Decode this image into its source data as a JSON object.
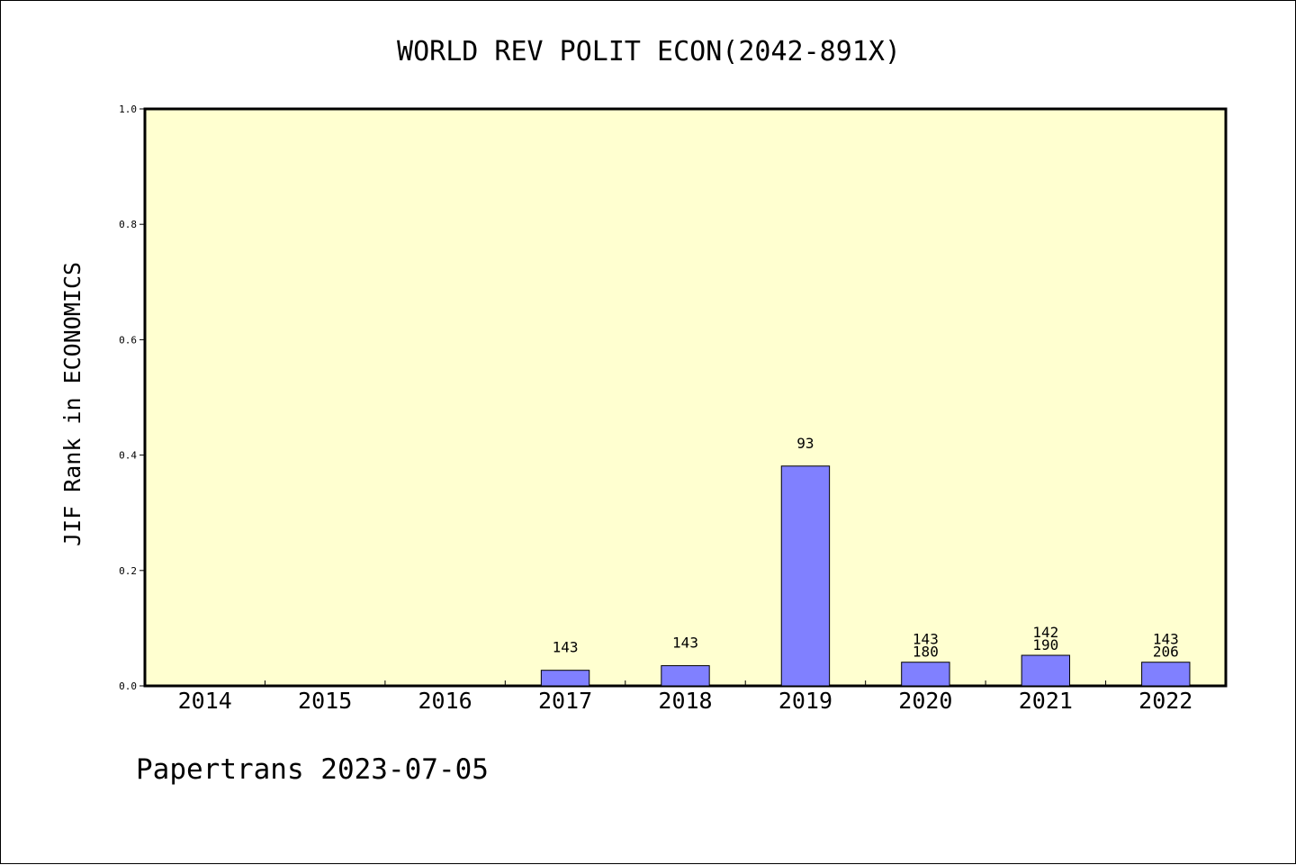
{
  "chart_data": {
    "type": "bar",
    "title": "WORLD REV POLIT ECON(2042-891X)",
    "xlabel": "",
    "ylabel": "JIF Rank in ECONOMICS",
    "ylim": [
      0,
      1.0
    ],
    "yticks": [
      "0.0",
      "0.2",
      "0.4",
      "0.6",
      "0.8",
      "1.0"
    ],
    "categories": [
      "2014",
      "2015",
      "2016",
      "2017",
      "2018",
      "2019",
      "2020",
      "2021",
      "2022"
    ],
    "values": [
      null,
      null,
      null,
      0.027,
      0.035,
      0.381,
      0.041,
      0.053,
      0.041
    ],
    "bar_labels": [
      [],
      [],
      [],
      [
        "143"
      ],
      [
        "143"
      ],
      [
        "93"
      ],
      [
        "143",
        "180"
      ],
      [
        "142",
        "190"
      ],
      [
        "143",
        "206"
      ]
    ],
    "grid": false,
    "colors": {
      "bar": "#8080ff",
      "plot_background": "#ffffd0",
      "page_background": "#ffffff"
    }
  },
  "footer": {
    "text": "Papertrans 2023-07-05"
  }
}
